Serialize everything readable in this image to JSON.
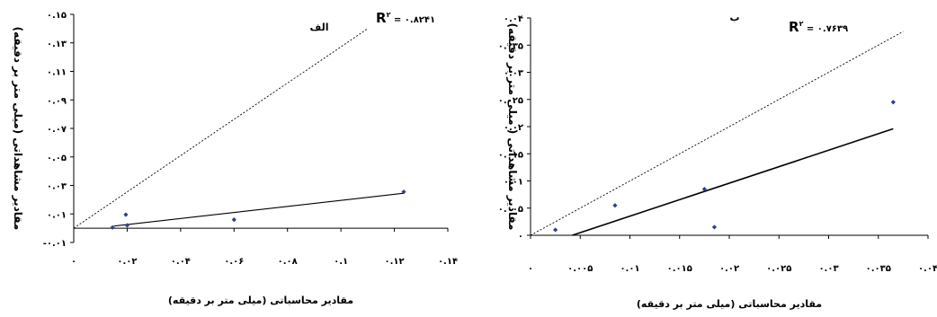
{
  "chart_data": [
    {
      "type": "scatter",
      "title": "الف",
      "r2_label": "R",
      "r2_sup": "۲",
      "r2_text": " = ۰.۸۲۴۱",
      "xlabel": "مقادیر محاسباتی (میلی متر بر دقیقه)",
      "ylabel": "مقادیر مشاهداتی (میلی متر بر دقیقه)",
      "xlim": [
        0,
        0.14
      ],
      "ylim": [
        -0.01,
        0.15
      ],
      "x_ticks": [
        "۰",
        "۰.۰۲",
        "۰.۰۴",
        "۰.۰۶",
        "۰.۰۸",
        "۰.۱",
        "۰.۱۲",
        "۰.۱۴"
      ],
      "x_tick_values": [
        0,
        0.02,
        0.04,
        0.06,
        0.08,
        0.1,
        0.12,
        0.14
      ],
      "y_ticks": [
        "-۰.۰۱",
        "۰.۰۱",
        "۰.۰۳",
        "۰.۰۵",
        "۰.۰۷",
        "۰.۰۹",
        "۰.۱۱",
        "۰.۱۳",
        "۰.۱۵"
      ],
      "y_tick_values": [
        -0.01,
        0.01,
        0.03,
        0.05,
        0.07,
        0.09,
        0.11,
        0.13,
        0.15
      ],
      "points": [
        {
          "x": 0.0145,
          "y": 0.0005
        },
        {
          "x": 0.0195,
          "y": 0.0095
        },
        {
          "x": 0.02,
          "y": 0.002
        },
        {
          "x": 0.06,
          "y": 0.006
        },
        {
          "x": 0.1235,
          "y": 0.0255
        }
      ],
      "regression_line": {
        "x1": 0.015,
        "y1": 0.0015,
        "x2": 0.1235,
        "y2": 0.0245
      },
      "reference_line": {
        "x1": 0,
        "y1": 0,
        "x2": 0.11,
        "y2": 0.14
      },
      "colors": {
        "points": "#2f3f8f",
        "lines": "#000000"
      }
    },
    {
      "type": "scatter",
      "title": "ب",
      "r2_label": "R",
      "r2_sup": "۲",
      "r2_text": " = ۰.۷۶۳۹",
      "xlabel": "مقادیر محاسباتی (میلی متر بر دقیقه)",
      "ylabel": "مقادیر مشاهداتی ( میلی متر بر دقیقه)",
      "xlim": [
        0,
        0.04
      ],
      "ylim": [
        0,
        0.04
      ],
      "x_ticks": [
        "۰",
        "۰.۰۰۵",
        "۰.۰۱",
        "۰.۰۱۵",
        "۰.۰۲",
        "۰.۰۲۵",
        "۰.۰۳",
        "۰.۰۳۵",
        "۰.۰۴"
      ],
      "x_tick_values": [
        0,
        0.005,
        0.01,
        0.015,
        0.02,
        0.025,
        0.03,
        0.035,
        0.04
      ],
      "y_ticks": [
        "۰",
        "۰.۰۰۵",
        "۰.۰۱",
        "۰.۰۱۵",
        "۰.۰۲",
        "۰.۰۲۵",
        "۰.۰۳",
        "۰.۰۳۵",
        "۰.۰۴"
      ],
      "y_tick_values": [
        0,
        0.005,
        0.01,
        0.015,
        0.02,
        0.025,
        0.03,
        0.035,
        0.04
      ],
      "points": [
        {
          "x": 0.0025,
          "y": 0.001
        },
        {
          "x": 0.0085,
          "y": 0.0055
        },
        {
          "x": 0.0175,
          "y": 0.0085
        },
        {
          "x": 0.0185,
          "y": 0.0015
        },
        {
          "x": 0.0365,
          "y": 0.0245
        }
      ],
      "regression_line": {
        "x1": 0.0042,
        "y1": 0,
        "x2": 0.0365,
        "y2": 0.0196
      },
      "reference_line": {
        "x1": 0,
        "y1": 0,
        "x2": 0.0375,
        "y2": 0.0375
      },
      "colors": {
        "points": "#2f3f8f",
        "lines": "#000000"
      }
    }
  ]
}
